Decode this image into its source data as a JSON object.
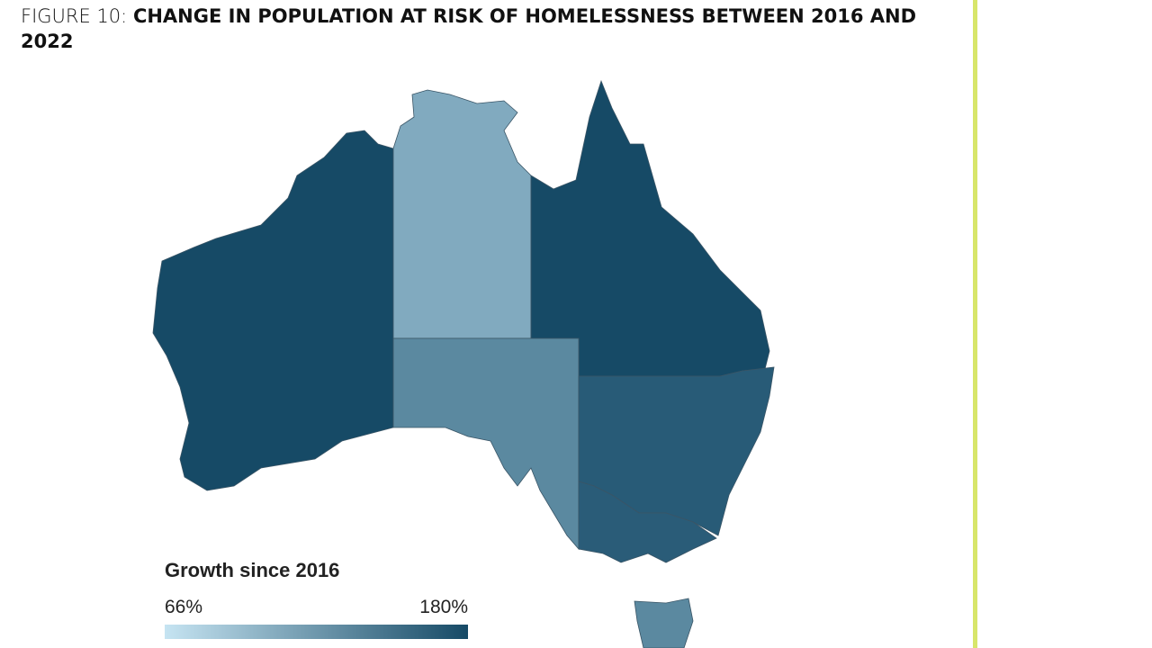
{
  "header": {
    "label": "FIGURE 10:",
    "title": "CHANGE IN POPULATION AT RISK OF HOMELESSNESS BETWEEN 2016 AND 2022"
  },
  "legend": {
    "title": "Growth since 2016",
    "min": {
      "value": 66,
      "label": "66%"
    },
    "max": {
      "value": 180,
      "label": "180%"
    },
    "colors": [
      "#c6e4f2",
      "#164a66"
    ]
  }
}
